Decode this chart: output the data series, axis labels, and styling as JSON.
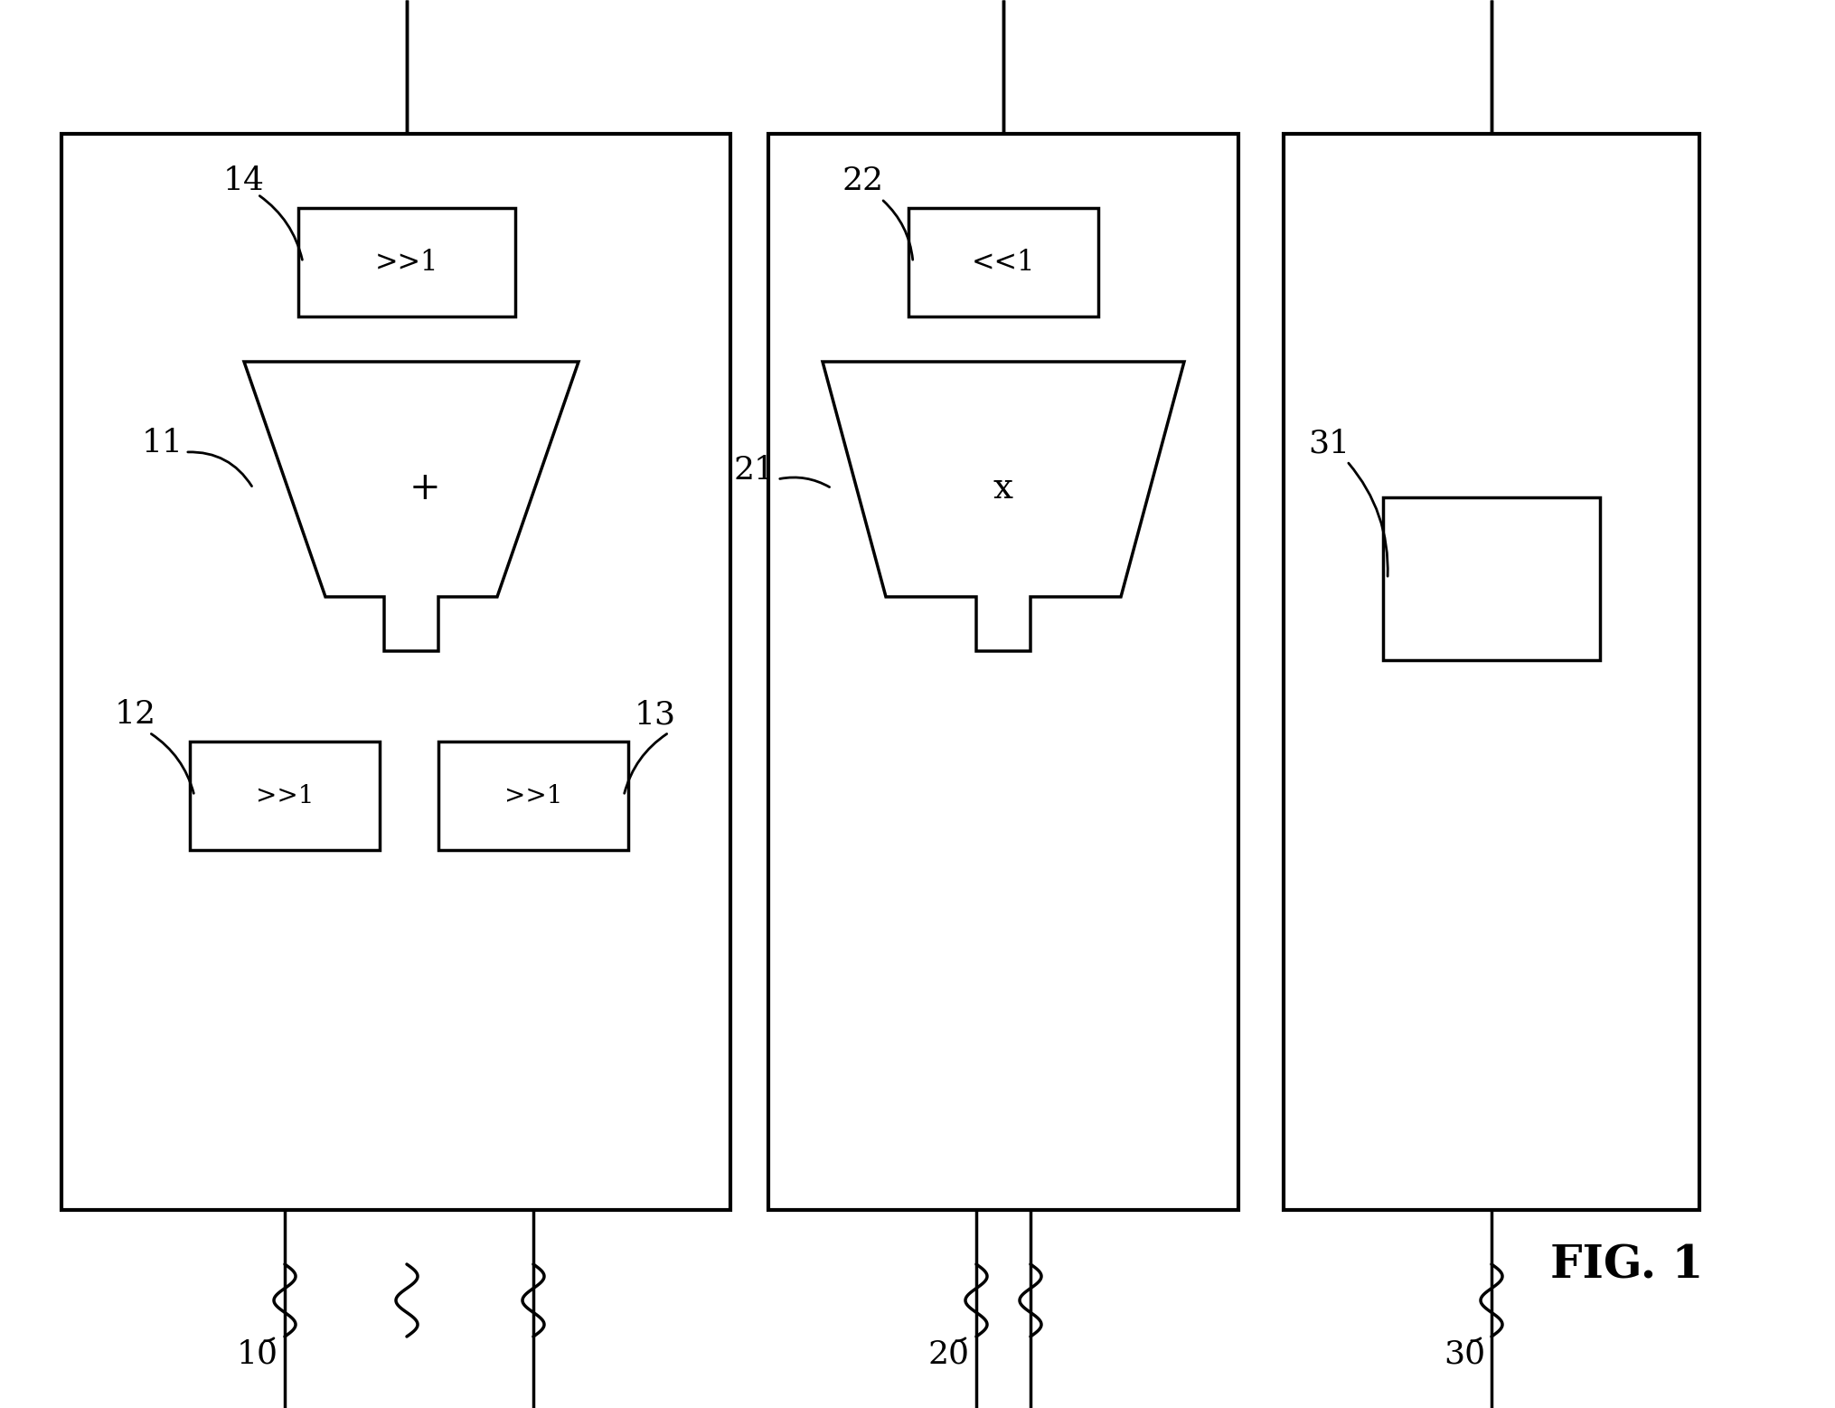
{
  "bg_color": "#ffffff",
  "line_color": "#000000",
  "figsize": [
    20.3,
    15.57
  ],
  "dpi": 100,
  "fig_label": "FIG. 1",
  "lw_outer": 3.0,
  "lw_inner": 2.5,
  "lw_wire": 2.5
}
